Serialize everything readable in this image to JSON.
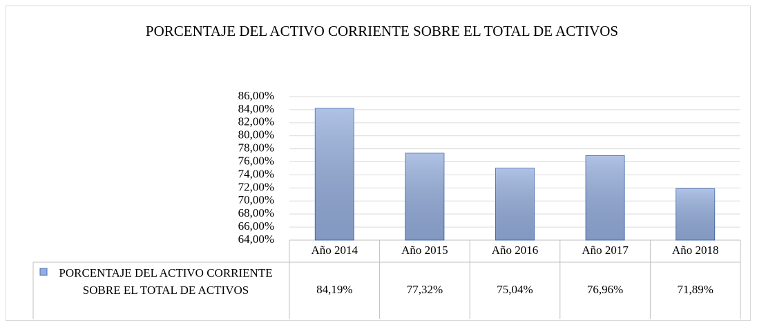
{
  "chart_data": {
    "type": "bar",
    "title": "PORCENTAJE DEL ACTIVO CORRIENTE SOBRE EL TOTAL DE ACTIVOS",
    "categories": [
      "Año 2014",
      "Año 2015",
      "Año 2016",
      "Año 2017",
      "Año 2018"
    ],
    "series": [
      {
        "name": "PORCENTAJE DEL ACTIVO CORRIENTE SOBRE EL TOTAL DE ACTIVOS",
        "color": "#95aedc",
        "values": [
          84.19,
          77.32,
          75.04,
          76.96,
          71.89
        ],
        "value_labels": [
          "84,19%",
          "77,32%",
          "75,04%",
          "76,96%",
          "71,89%"
        ]
      }
    ],
    "ylim": [
      64,
      86
    ],
    "yticks": [
      {
        "value": 64,
        "label": "64,00%"
      },
      {
        "value": 66,
        "label": "66,00%"
      },
      {
        "value": 68,
        "label": "68,00%"
      },
      {
        "value": 70,
        "label": "70,00%"
      },
      {
        "value": 72,
        "label": "72,00%"
      },
      {
        "value": 74,
        "label": "74,00%"
      },
      {
        "value": 76,
        "label": "76,00%"
      },
      {
        "value": 78,
        "label": "78,00%"
      },
      {
        "value": 80,
        "label": "80,00%"
      },
      {
        "value": 82,
        "label": "82,00%"
      },
      {
        "value": 84,
        "label": "84,00%"
      },
      {
        "value": 86,
        "label": "86,00%"
      }
    ],
    "grid": true
  }
}
